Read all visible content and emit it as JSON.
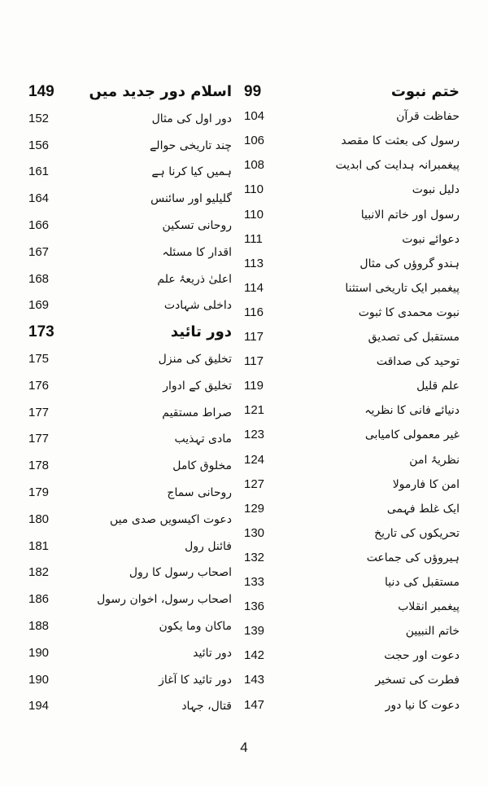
{
  "columns": [
    {
      "sections": [
        {
          "title": "ختم نبوت",
          "page": 99,
          "entries": [
            {
              "title": "حفاظت قرآن",
              "page": 104
            },
            {
              "title": "رسول کی بعثت کا مقصد",
              "page": 106
            },
            {
              "title": "پیغمبرانہ ہدایت کی ابدیت",
              "page": 108
            },
            {
              "title": "دلیل نبوت",
              "page": 110
            },
            {
              "title": "رسول اور خاتم الانبیا",
              "page": 110
            },
            {
              "title": "دعوائے نبوت",
              "page": 111
            },
            {
              "title": "ہندو گروؤں کی مثال",
              "page": 113
            },
            {
              "title": "پیغمبر ایک تاریخی استثنا",
              "page": 114
            },
            {
              "title": "نبوت محمدی کا ثبوت",
              "page": 116
            },
            {
              "title": "مستقبل کی تصدیق",
              "page": 117
            },
            {
              "title": "توحید کی صداقت",
              "page": 117
            },
            {
              "title": "علم قلیل",
              "page": 119
            },
            {
              "title": "دنیائے فانی کا نظریہ",
              "page": 121
            },
            {
              "title": "غیر معمولی کامیابی",
              "page": 123
            },
            {
              "title": "نظریۂ امن",
              "page": 124
            },
            {
              "title": "امن کا فارمولا",
              "page": 127
            },
            {
              "title": "ایک غلط فہمی",
              "page": 129
            },
            {
              "title": "تحریکوں کی تاریخ",
              "page": 130
            },
            {
              "title": "ہیروؤں کی جماعت",
              "page": 132
            },
            {
              "title": "مستقبل کی دنیا",
              "page": 133
            },
            {
              "title": "پیغمبر انقلاب",
              "page": 136
            },
            {
              "title": "خاتم النبیین",
              "page": 139
            },
            {
              "title": "دعوت اور حجت",
              "page": 142
            },
            {
              "title": "فطرت کی تسخیر",
              "page": 143
            },
            {
              "title": "دعوت کا نیا دور",
              "page": 147
            }
          ]
        }
      ]
    },
    {
      "sections": [
        {
          "title": "اسلام دور جدید میں",
          "page": 149,
          "entries": [
            {
              "title": "دور اول کی مثال",
              "page": 152
            },
            {
              "title": "چند تاریخی حوالے",
              "page": 156
            },
            {
              "title": "ہمیں کیا کرنا ہے",
              "page": 161
            },
            {
              "title": "گلیلیو اور سائنس",
              "page": 164
            },
            {
              "title": "روحانی تسکین",
              "page": 166
            },
            {
              "title": "اقدار کا مسئلہ",
              "page": 167
            },
            {
              "title": "اعلیٰ ذریعۂ علم",
              "page": 168
            },
            {
              "title": "داخلی شہادت",
              "page": 169
            }
          ]
        },
        {
          "title": "دور تائید",
          "page": 173,
          "entries": [
            {
              "title": "تخلیق کی منزل",
              "page": 175
            },
            {
              "title": "تخلیق کے ادوار",
              "page": 176
            },
            {
              "title": "صراط مستقیم",
              "page": 177
            },
            {
              "title": "مادی تہذیب",
              "page": 177
            },
            {
              "title": "مخلوق کامل",
              "page": 178
            },
            {
              "title": "روحانی سماج",
              "page": 179
            },
            {
              "title": "دعوت اکیسویں صدی میں",
              "page": 180
            },
            {
              "title": "فائنل رول",
              "page": 181
            },
            {
              "title": "اصحاب رسول کا رول",
              "page": 182
            },
            {
              "title": "اصحاب رسول، اخوان رسول",
              "page": 186
            },
            {
              "title": "ماکان وما یکون",
              "page": 188
            },
            {
              "title": "دور تائید",
              "page": 190
            },
            {
              "title": "دور تائید کا آغاز",
              "page": 190
            },
            {
              "title": "قتال، جہاد",
              "page": 194
            }
          ]
        }
      ]
    }
  ],
  "folio": 4
}
